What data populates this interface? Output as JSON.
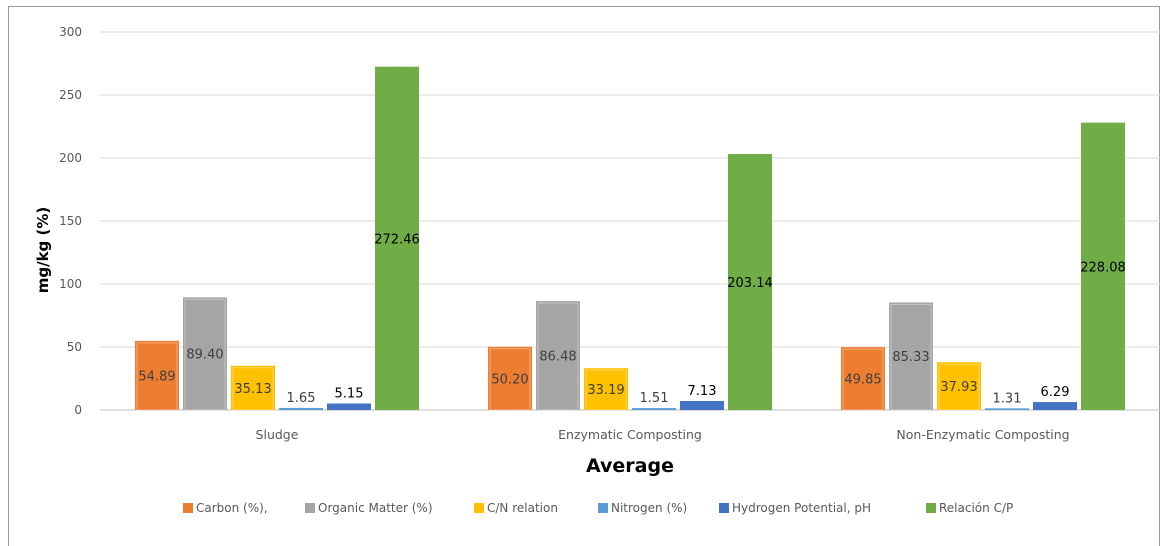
{
  "chart_data": {
    "type": "bar",
    "title": "",
    "xlabel": "Average",
    "ylabel": "mg/kg (%)",
    "ylim": [
      0,
      300
    ],
    "yticks": [
      "0",
      "50",
      "100",
      "150",
      "200",
      "250",
      "300"
    ],
    "grid": true,
    "legend_position": "bottom",
    "categories": [
      "Sludge",
      "Enzymatic Composting",
      "Non-Enzymatic Composting"
    ],
    "series": [
      {
        "name": "Carbon (%),",
        "color": "#ED7D31",
        "values": [
          54.89,
          50.2,
          49.85
        ],
        "labels": [
          "54.89",
          "50.20",
          "49.85"
        ]
      },
      {
        "name": "Organic Matter (%)",
        "color": "#A5A5A5",
        "values": [
          89.4,
          86.48,
          85.33
        ],
        "labels": [
          "89.40",
          "86.48",
          "85.33"
        ]
      },
      {
        "name": "C/N relation",
        "color": "#FFC000",
        "values": [
          35.13,
          33.19,
          37.93
        ],
        "labels": [
          "35.13",
          "33.19",
          "37.93"
        ]
      },
      {
        "name": "Nitrogen (%)",
        "color": "#5B9BD5",
        "values": [
          1.65,
          1.51,
          1.31
        ],
        "labels": [
          "1.65",
          "1.51",
          "1.31"
        ]
      },
      {
        "name": "Hydrogen Potential, pH",
        "color": "#4472C4",
        "values": [
          5.15,
          7.13,
          6.29
        ],
        "labels": [
          "5.15",
          "7.13",
          "6.29"
        ]
      },
      {
        "name": "Relación C/P",
        "color": "#70AD47",
        "values": [
          272.46,
          203.14,
          228.08
        ],
        "labels": [
          "272.46",
          "203.14",
          "228.08"
        ]
      }
    ]
  }
}
